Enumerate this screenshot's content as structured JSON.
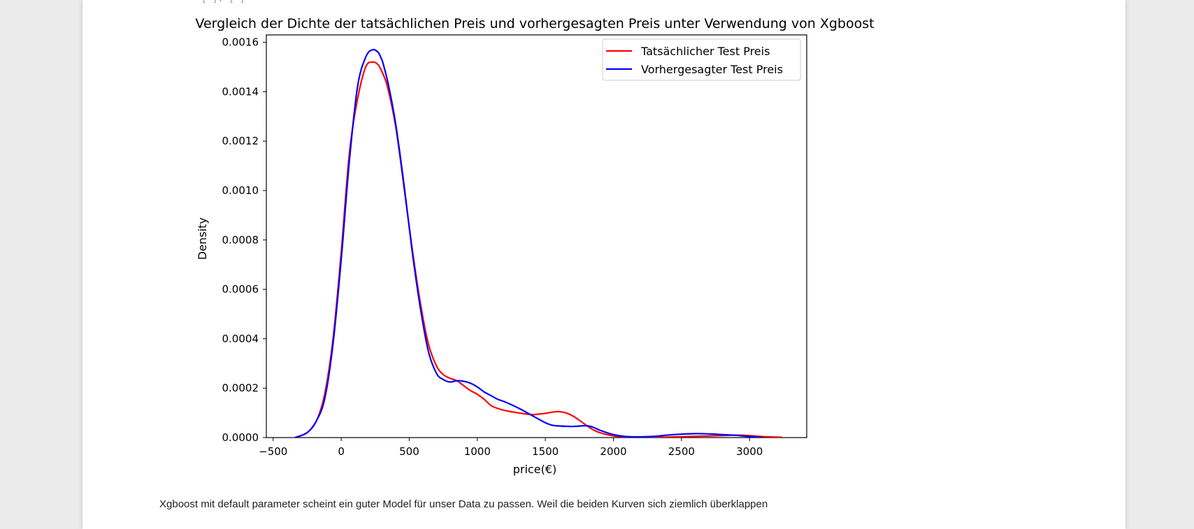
{
  "notebook": {
    "caption": "Xgboost mit default parameter scheint ein guter Model für unser Data zu passen. Weil die beiden Kurven sich ziemlich überklappen"
  },
  "chart_data": {
    "type": "line",
    "title": "Vergleich der Dichte der tatsächlichen Preis und vorhergesagten Preis unter Verwendung von Xgboost",
    "xlabel": "price(€)",
    "ylabel": "Density",
    "xlim": [
      -550,
      3420
    ],
    "ylim": [
      0,
      0.00163
    ],
    "xticks": [
      -500,
      0,
      500,
      1000,
      1500,
      2000,
      2500,
      3000
    ],
    "xtick_labels": [
      "−500",
      "0",
      "500",
      "1000",
      "1500",
      "2000",
      "2500",
      "3000"
    ],
    "yticks": [
      0,
      0.0002,
      0.0004,
      0.0006,
      0.0008,
      0.001,
      0.0012,
      0.0014,
      0.0016
    ],
    "ytick_labels": [
      "0.0000",
      "0.0002",
      "0.0004",
      "0.0006",
      "0.0008",
      "0.0010",
      "0.0012",
      "0.0014",
      "0.0016"
    ],
    "grid": false,
    "legend_position": "upper-right",
    "series": [
      {
        "name": "Tatsächlicher Test Preis",
        "color": "#ff0000",
        "x": [
          -340,
          -250,
          -180,
          -120,
          -60,
          0,
          60,
          120,
          180,
          230,
          270,
          300,
          340,
          400,
          460,
          520,
          580,
          640,
          700,
          750,
          800,
          850,
          900,
          950,
          1000,
          1050,
          1100,
          1150,
          1200,
          1300,
          1400,
          1450,
          1500,
          1550,
          1600,
          1650,
          1700,
          1750,
          1800,
          1850,
          1900,
          2000,
          2100,
          2200,
          2400,
          2600,
          2800,
          2900,
          3000,
          3100,
          3240
        ],
        "y": [
          0,
          2e-05,
          7e-05,
          0.00018,
          0.0004,
          0.00075,
          0.00115,
          0.00137,
          0.0015,
          0.00152,
          0.00151,
          0.00148,
          0.00142,
          0.00126,
          0.00102,
          0.00077,
          0.00055,
          0.00038,
          0.00029,
          0.000255,
          0.00024,
          0.00023,
          0.00021,
          0.00019,
          0.000175,
          0.000155,
          0.00013,
          0.000118,
          0.00011,
          0.0001,
          9.3e-05,
          9.5e-05,
          9.8e-05,
          0.000103,
          0.000105,
          0.0001,
          8.8e-05,
          7e-05,
          5e-05,
          3.2e-05,
          2e-05,
          7e-06,
          3e-06,
          1e-06,
          2e-06,
          5e-06,
          8e-06,
          1e-05,
          8e-06,
          4e-06,
          1e-06
        ]
      },
      {
        "name": "Vorhergesagter Test Preis",
        "color": "#0000ff",
        "x": [
          -340,
          -250,
          -180,
          -120,
          -60,
          0,
          60,
          120,
          180,
          230,
          270,
          290,
          310,
          350,
          400,
          460,
          520,
          580,
          640,
          700,
          750,
          800,
          850,
          900,
          950,
          1000,
          1050,
          1100,
          1150,
          1200,
          1300,
          1400,
          1500,
          1550,
          1600,
          1700,
          1800,
          1850,
          1900,
          2000,
          2100,
          2200,
          2300,
          2400,
          2500,
          2600,
          2700,
          2800,
          2900,
          3000,
          3090
        ],
        "y": [
          0,
          2e-05,
          7e-05,
          0.00016,
          0.00038,
          0.00072,
          0.00112,
          0.00142,
          0.00154,
          0.00157,
          0.00156,
          0.00154,
          0.00151,
          0.00142,
          0.00127,
          0.00103,
          0.00076,
          0.00053,
          0.00035,
          0.00026,
          0.000235,
          0.000225,
          0.00023,
          0.000228,
          0.00022,
          0.000205,
          0.000185,
          0.00017,
          0.000155,
          0.000145,
          0.00012,
          9e-05,
          6e-05,
          5e-05,
          4.7e-05,
          4.5e-05,
          4.8e-05,
          4.2e-05,
          3e-05,
          1.2e-05,
          4e-06,
          3e-06,
          5e-06,
          1e-05,
          1.4e-05,
          1.6e-05,
          1.5e-05,
          1.2e-05,
          9e-06,
          4e-06,
          1e-06
        ]
      }
    ]
  }
}
